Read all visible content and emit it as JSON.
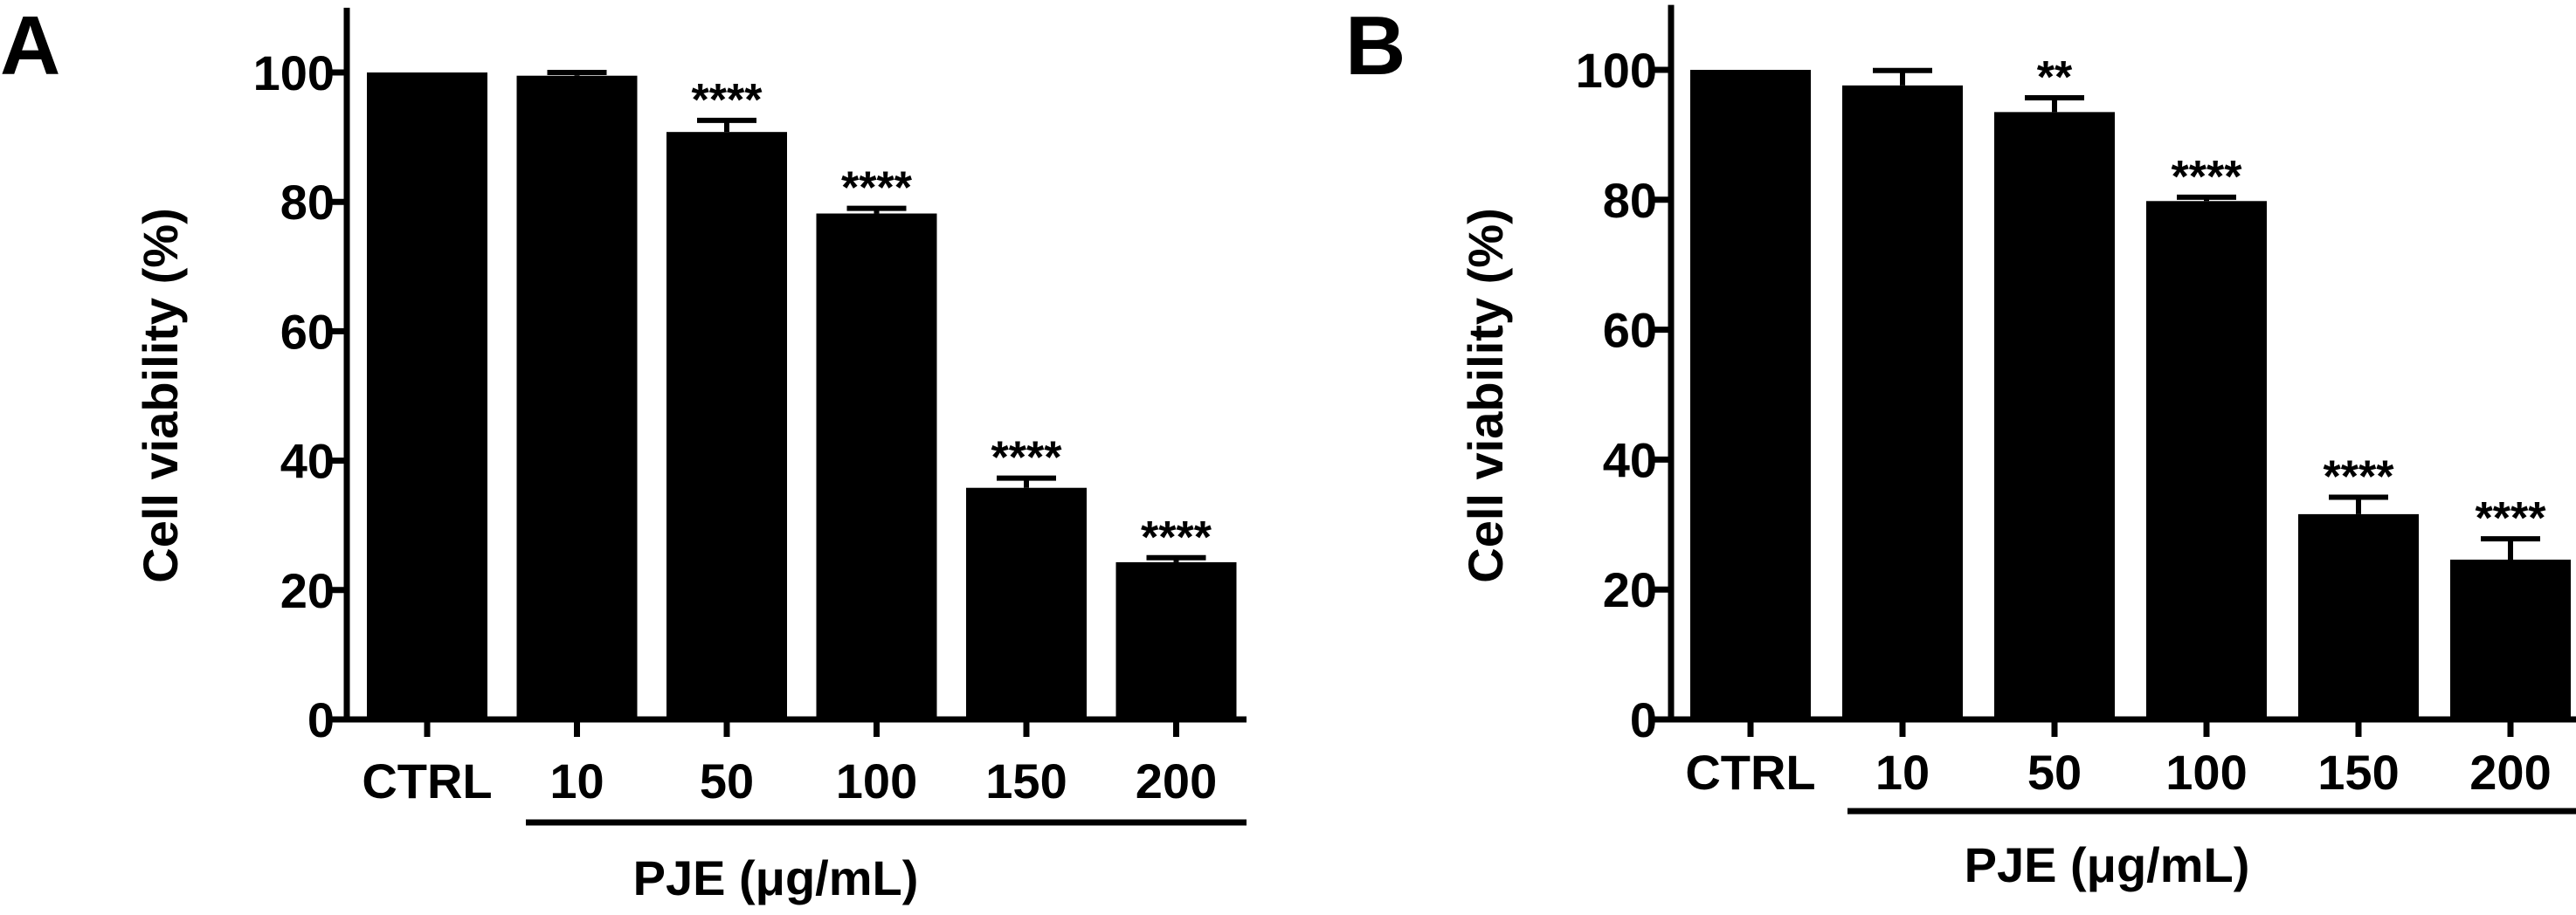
{
  "chart_data": [
    {
      "type": "bar",
      "panel": "A",
      "ylabel": "Cell viability (%)",
      "xlabel": "PJE (μg/mL)",
      "ylim": [
        0,
        110
      ],
      "yticks": [
        "0",
        "20",
        "40",
        "60",
        "80",
        "100"
      ],
      "categories": [
        "CTRL",
        "10",
        "50",
        "100",
        "150",
        "200"
      ],
      "values": [
        100,
        99.5,
        90.8,
        78.2,
        35.8,
        24.3
      ],
      "errors": [
        0,
        0.5,
        1.8,
        0.8,
        1.5,
        0.7
      ],
      "significance": [
        "",
        "",
        "****",
        "****",
        "****",
        "****"
      ],
      "bar_color": "#000000"
    },
    {
      "type": "bar",
      "panel": "B",
      "ylabel": "Cell viability (%)",
      "xlabel": "PJE (μg/mL)",
      "ylim": [
        0,
        110
      ],
      "yticks": [
        "0",
        "20",
        "40",
        "60",
        "80",
        "100"
      ],
      "categories": [
        "CTRL",
        "10",
        "50",
        "100",
        "150",
        "200"
      ],
      "values": [
        100,
        97.6,
        93.5,
        79.8,
        31.6,
        24.6
      ],
      "errors": [
        0,
        2.3,
        2.2,
        0.6,
        2.6,
        3.2
      ],
      "significance": [
        "",
        "",
        "**",
        "****",
        "****",
        "****"
      ],
      "bar_color": "#000000"
    }
  ]
}
